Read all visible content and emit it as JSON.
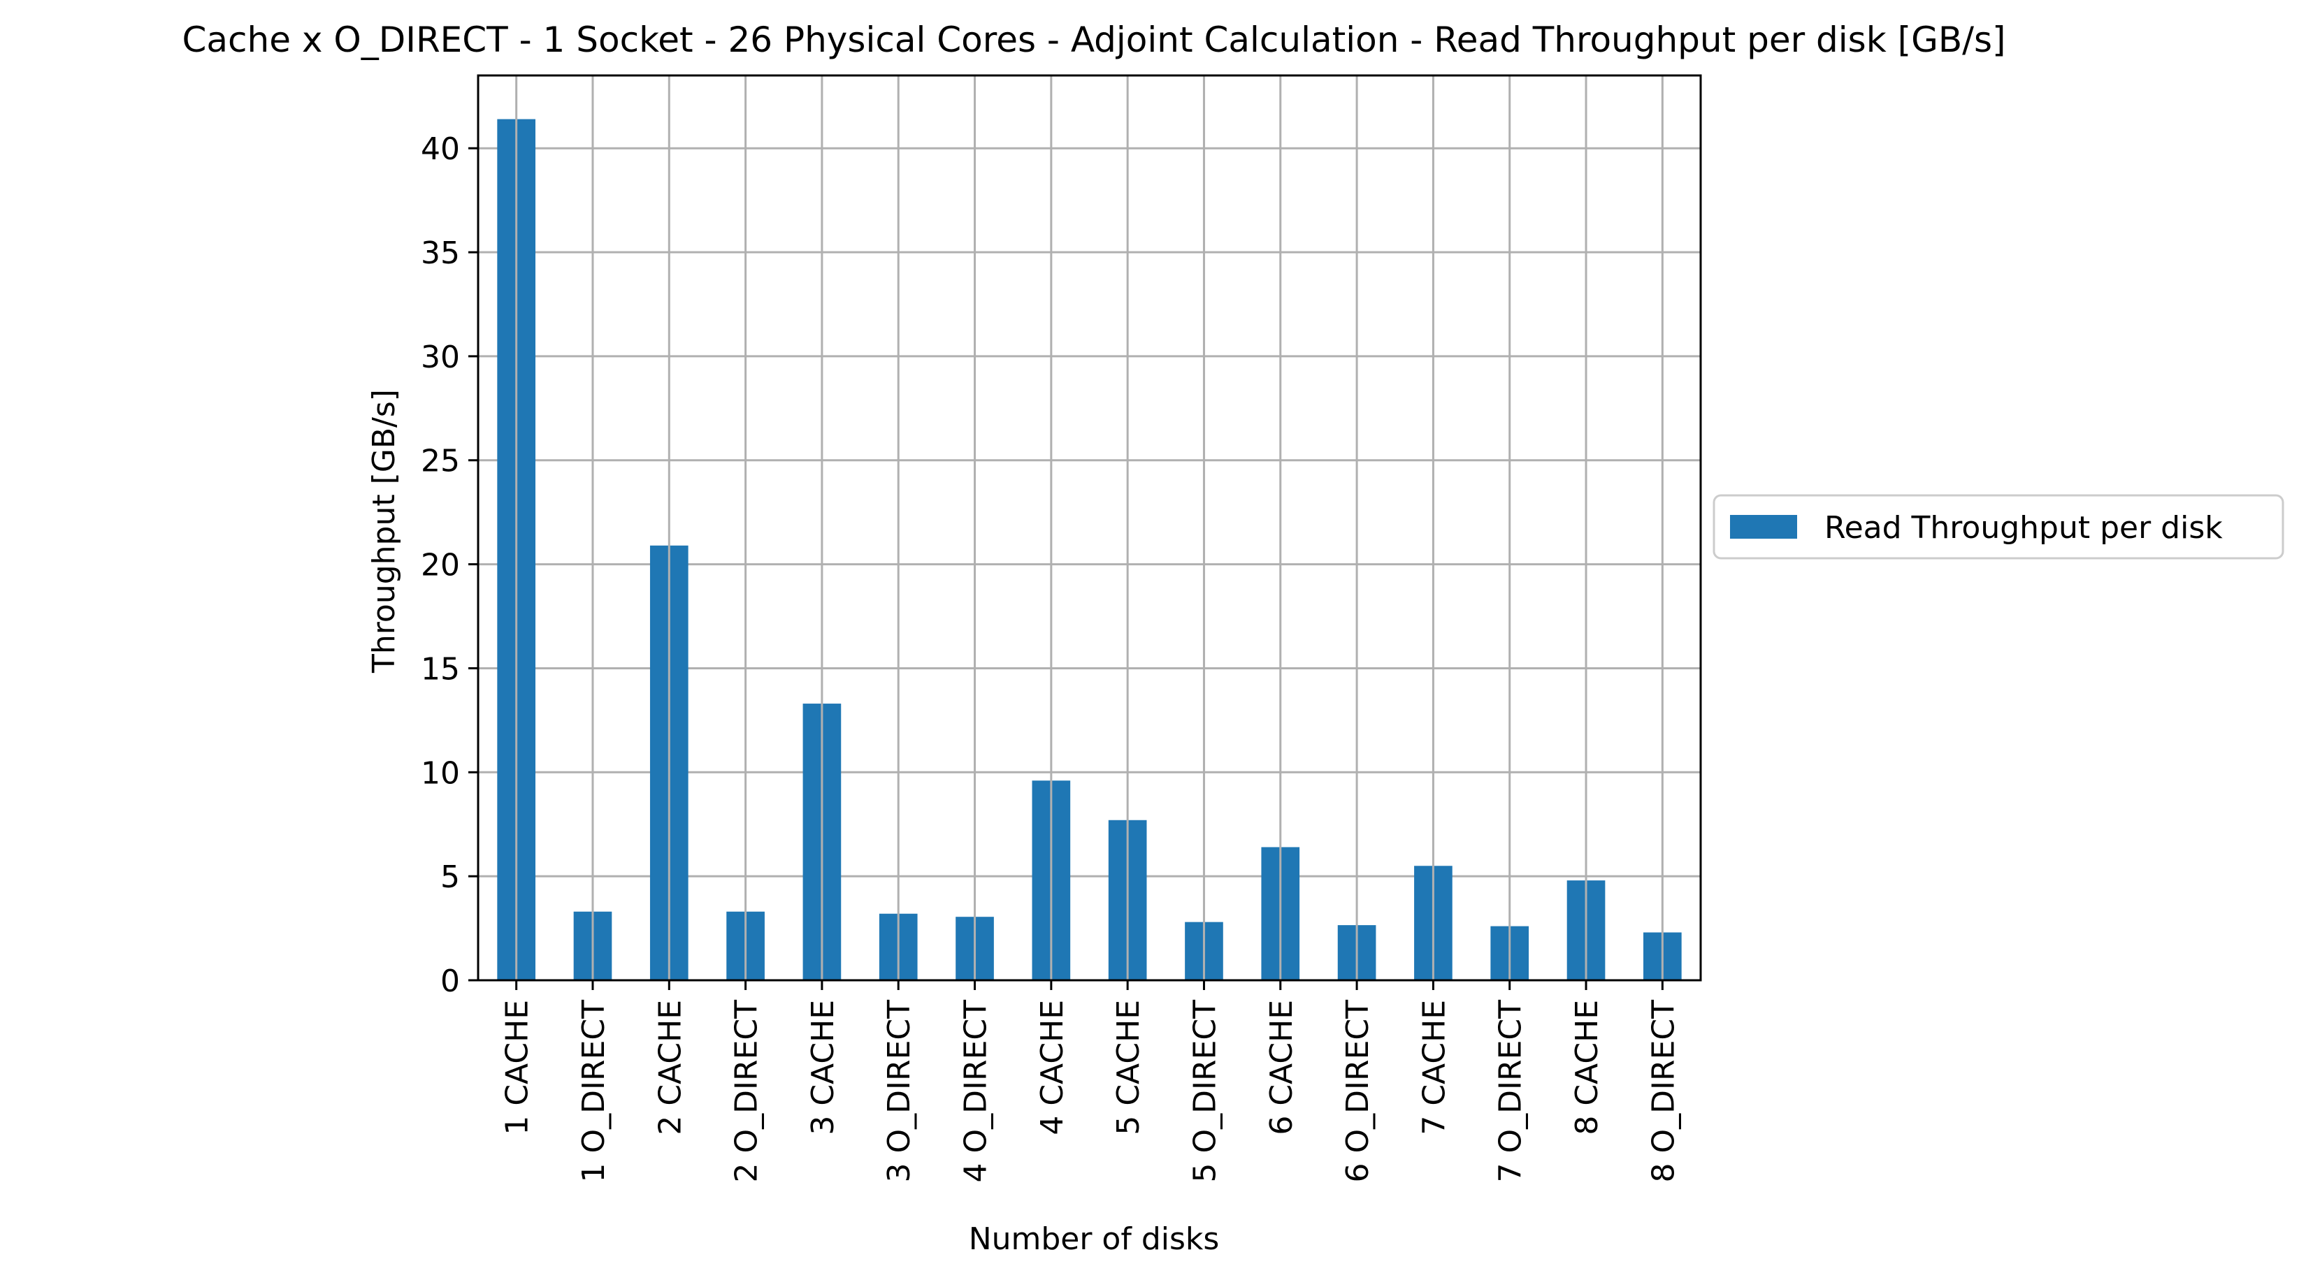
{
  "chart_data": {
    "type": "bar",
    "title": "Cache x O_DIRECT - 1 Socket - 26 Physical Cores - Adjoint Calculation - Read Throughput per disk [GB/s]",
    "xlabel": "Number of disks",
    "ylabel": "Throughput [GB/s]",
    "ylim": [
      0,
      43.5
    ],
    "yticks": [
      0,
      5,
      10,
      15,
      20,
      25,
      30,
      35,
      40
    ],
    "grid": true,
    "legend_position": "right",
    "bar_color": "#1f77b4",
    "categories": [
      "1 CACHE",
      "1 O_DIRECT",
      "2 CACHE",
      "2 O_DIRECT",
      "3 CACHE",
      "3 O_DIRECT",
      "4 O_DIRECT",
      "4 CACHE",
      "5 CACHE",
      "5 O_DIRECT",
      "6 CACHE",
      "6 O_DIRECT",
      "7 CACHE",
      "7 O_DIRECT",
      "8 CACHE",
      "8 O_DIRECT"
    ],
    "series": [
      {
        "name": "Read Throughput per disk",
        "values": [
          41.4,
          3.3,
          20.9,
          3.3,
          13.3,
          3.2,
          3.05,
          9.6,
          7.7,
          2.8,
          6.4,
          2.65,
          5.5,
          2.6,
          4.8,
          2.3
        ]
      }
    ]
  }
}
